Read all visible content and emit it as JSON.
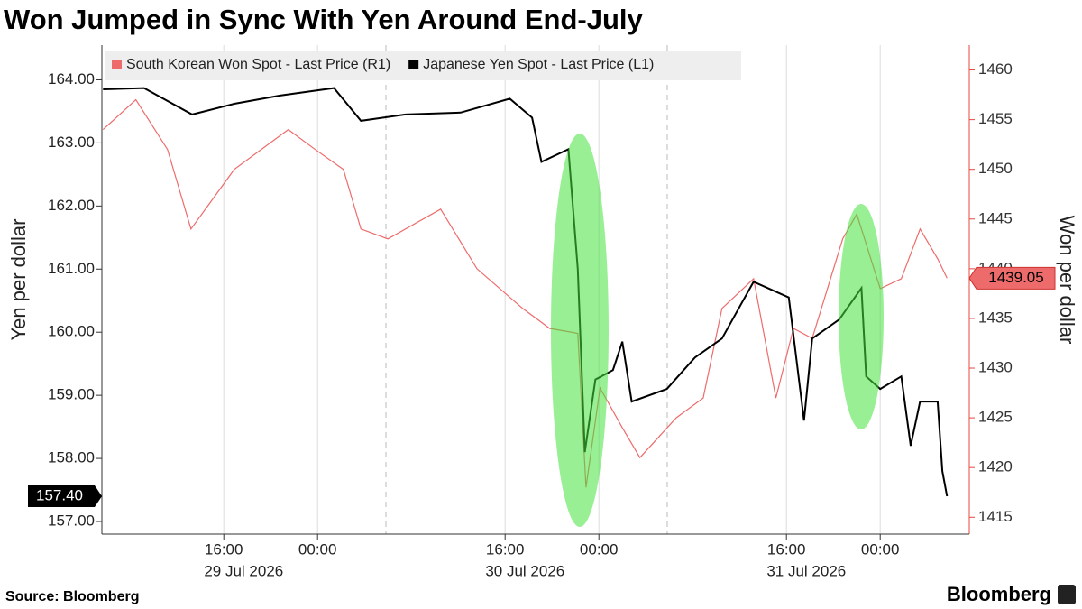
{
  "chart_data": {
    "type": "line",
    "title": "Won Jumped in Sync With Yen Around End-July",
    "source": "Source: Bloomberg",
    "brand": "Bloomberg",
    "ylabel": "Yen per dollar",
    "y2label": "Won per dollar",
    "xlim": [
      5.6,
      79.6
    ],
    "xticks": [
      {
        "value": 16,
        "label": "16:00"
      },
      {
        "value": 24,
        "label": "00:00"
      },
      {
        "value": 40,
        "label": "16:00"
      },
      {
        "value": 48,
        "label": "00:00"
      },
      {
        "value": 64,
        "label": "16:00"
      },
      {
        "value": 72,
        "label": "00:00"
      }
    ],
    "date_labels": [
      {
        "value": 17.7,
        "label": "29 Jul 2026"
      },
      {
        "value": 41.7,
        "label": "30 Jul 2026"
      },
      {
        "value": 65.7,
        "label": "31 Jul 2026"
      }
    ],
    "ylim": [
      156.8,
      164.55
    ],
    "yticks": [
      {
        "value": 157,
        "label": "157.00"
      },
      {
        "value": 158,
        "label": "158.00"
      },
      {
        "value": 159,
        "label": "159.00"
      },
      {
        "value": 160,
        "label": "160.00"
      },
      {
        "value": 161,
        "label": "161.00"
      },
      {
        "value": 162,
        "label": "162.00"
      },
      {
        "value": 163,
        "label": "163.00"
      },
      {
        "value": 164,
        "label": "164.00"
      }
    ],
    "y2lim": [
      1413.3,
      1462.5
    ],
    "y2ticks": [
      1415,
      1420,
      1425,
      1430,
      1435,
      1440,
      1445,
      1450,
      1455,
      1460
    ],
    "series": [
      {
        "name": "South Korean Won Spot - Last Price (R1)",
        "color": "#ee6b6b",
        "axis": "y2",
        "last_label": "1439.05",
        "x": [
          5.7,
          8.5,
          11.2,
          13.2,
          16.9,
          21.5,
          23.8,
          26.2,
          27.7,
          30,
          34.5,
          37.6,
          41.5,
          43.8,
          46.2,
          46.9,
          48.1,
          50,
          51.5,
          54.6,
          56.9,
          58.5,
          61.2,
          63.1,
          64.6,
          66.2,
          68.8,
          70,
          72,
          73.8,
          75.4,
          76.9,
          77.7
        ],
        "values": [
          1454,
          1457,
          1452,
          1444,
          1450,
          1454,
          1452,
          1450,
          1444,
          1443,
          1446,
          1440,
          1436,
          1434,
          1433.5,
          1418,
          1428,
          1424,
          1421,
          1425,
          1427,
          1436,
          1439,
          1427,
          1434,
          1433,
          1443,
          1445.5,
          1438,
          1439,
          1444,
          1441,
          1439.05
        ]
      },
      {
        "name": "Japanese Yen Spot - Last Price (L1)",
        "color": "#000000",
        "axis": "y",
        "last_label": "157.40",
        "x": [
          5.7,
          9.2,
          13.3,
          16.9,
          20.8,
          25.4,
          27.7,
          31.5,
          36.2,
          40.4,
          42.3,
          43.1,
          45.4,
          46.2,
          46.8,
          47.7,
          49.2,
          50,
          50.8,
          53.8,
          56.2,
          58.5,
          60,
          61.2,
          64.2,
          65.5,
          66.2,
          68.5,
          70.4,
          70.8,
          72,
          73.8,
          74.6,
          75.4,
          76.9,
          77.3,
          77.7
        ],
        "values": [
          163.85,
          163.87,
          163.45,
          163.62,
          163.75,
          163.87,
          163.35,
          163.45,
          163.48,
          163.7,
          163.4,
          162.7,
          162.9,
          161,
          158.1,
          159.25,
          159.4,
          159.85,
          158.9,
          159.1,
          159.6,
          159.9,
          160.4,
          160.8,
          160.55,
          158.6,
          159.9,
          160.2,
          160.7,
          159.3,
          159.1,
          159.3,
          158.2,
          158.9,
          158.9,
          157.8,
          157.4
        ]
      }
    ]
  }
}
